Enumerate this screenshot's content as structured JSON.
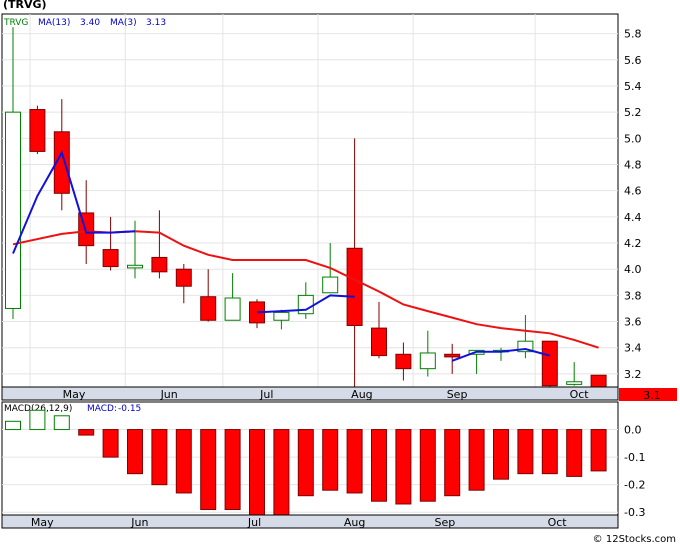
{
  "ticker_label": "(TRVG)",
  "footer": "© 12Stocks.com",
  "chart_data": [
    {
      "type": "candlestick",
      "title": "(TRVG)",
      "legend": {
        "symbol": "TRVG",
        "ma13_label": "MA(13)",
        "ma13_value": "3.40",
        "ma3_label": "MA(3)",
        "ma3_value": "3.13"
      },
      "last_price_label": "3.1",
      "ylim": [
        3.1,
        5.95
      ],
      "yticks": [
        "5.8",
        "5.6",
        "5.4",
        "5.2",
        "5.0",
        "4.8",
        "4.6",
        "4.4",
        "4.2",
        "4.0",
        "3.8",
        "3.6",
        "3.4",
        "3.2"
      ],
      "x_labels": [
        {
          "label": "May",
          "pos": 2.5
        },
        {
          "label": "Jun",
          "pos": 6.4
        },
        {
          "label": "Jul",
          "pos": 10.4
        },
        {
          "label": "Aug",
          "pos": 14.3
        },
        {
          "label": "Sep",
          "pos": 18.2
        },
        {
          "label": "Oct",
          "pos": 23.2
        }
      ],
      "candles": [
        {
          "o": 3.7,
          "c": 5.2,
          "h": 5.85,
          "l": 3.62
        },
        {
          "o": 5.22,
          "c": 4.9,
          "h": 5.25,
          "l": 4.88
        },
        {
          "o": 5.05,
          "c": 4.58,
          "h": 5.3,
          "l": 4.45
        },
        {
          "o": 4.43,
          "c": 4.18,
          "h": 4.68,
          "l": 4.04
        },
        {
          "o": 4.15,
          "c": 4.02,
          "h": 4.4,
          "l": 3.99
        },
        {
          "o": 4.01,
          "c": 4.03,
          "h": 4.37,
          "l": 3.93
        },
        {
          "o": 4.09,
          "c": 3.98,
          "h": 4.45,
          "l": 3.93
        },
        {
          "o": 4.0,
          "c": 3.87,
          "h": 4.04,
          "l": 3.74
        },
        {
          "o": 3.79,
          "c": 3.61,
          "h": 4.0,
          "l": 3.6
        },
        {
          "o": 3.61,
          "c": 3.78,
          "h": 3.97,
          "l": 3.61
        },
        {
          "o": 3.75,
          "c": 3.59,
          "h": 3.77,
          "l": 3.55
        },
        {
          "o": 3.61,
          "c": 3.67,
          "h": 3.69,
          "l": 3.54
        },
        {
          "o": 3.66,
          "c": 3.8,
          "h": 3.9,
          "l": 3.62
        },
        {
          "o": 3.82,
          "c": 3.94,
          "h": 4.2,
          "l": 3.82
        },
        {
          "o": 4.16,
          "c": 3.57,
          "h": 5.0,
          "l": 3.1
        },
        {
          "o": 3.55,
          "c": 3.34,
          "h": 3.75,
          "l": 3.32
        },
        {
          "o": 3.35,
          "c": 3.24,
          "h": 3.44,
          "l": 3.15
        },
        {
          "o": 3.24,
          "c": 3.36,
          "h": 3.53,
          "l": 3.18
        },
        {
          "o": 3.35,
          "c": 3.33,
          "h": 3.43,
          "l": 3.2
        },
        {
          "o": 3.35,
          "c": 3.38,
          "h": 3.38,
          "l": 3.2
        },
        {
          "o": 3.37,
          "c": 3.38,
          "h": 3.4,
          "l": 3.3
        },
        {
          "o": 3.37,
          "c": 3.45,
          "h": 3.65,
          "l": 3.32
        },
        {
          "o": 3.45,
          "c": 3.11,
          "h": 3.45,
          "l": 3.1
        },
        {
          "o": 3.12,
          "c": 3.14,
          "h": 3.29,
          "l": 3.11
        },
        {
          "o": 3.19,
          "c": 3.1,
          "h": 3.19,
          "l": 3.1
        }
      ],
      "ma13": [
        {
          "i": 0,
          "v": 4.19
        },
        {
          "i": 2,
          "v": 4.27
        },
        {
          "i": 3,
          "v": 4.29
        },
        {
          "i": 4,
          "v": 4.28
        },
        {
          "i": 5,
          "v": 4.29
        },
        {
          "i": 6,
          "v": 4.28
        },
        {
          "i": 7,
          "v": 4.18
        },
        {
          "i": 8,
          "v": 4.11
        },
        {
          "i": 9,
          "v": 4.07
        },
        {
          "i": 10,
          "v": 4.07
        },
        {
          "i": 11,
          "v": 4.07
        },
        {
          "i": 12,
          "v": 4.07
        },
        {
          "i": 13,
          "v": 4.01
        },
        {
          "i": 14,
          "v": 3.92
        },
        {
          "i": 15,
          "v": 3.83
        },
        {
          "i": 16,
          "v": 3.73
        },
        {
          "i": 17,
          "v": 3.68
        },
        {
          "i": 18,
          "v": 3.63
        },
        {
          "i": 19,
          "v": 3.58
        },
        {
          "i": 20,
          "v": 3.55
        },
        {
          "i": 21,
          "v": 3.53
        },
        {
          "i": 22,
          "v": 3.51
        },
        {
          "i": 23,
          "v": 3.46
        },
        {
          "i": 24,
          "v": 3.4
        }
      ],
      "ma3": [
        {
          "i": 0,
          "v": 4.12
        },
        {
          "i": 1,
          "v": 4.56
        },
        {
          "i": 2,
          "v": 4.89
        },
        {
          "i": 3,
          "v": 4.28
        },
        {
          "i": 4,
          "v": 4.28
        },
        {
          "i": 5,
          "v": 4.29
        },
        {
          "i": 10,
          "v": 3.67
        },
        {
          "i": 11,
          "v": 3.68
        },
        {
          "i": 12,
          "v": 3.69
        },
        {
          "i": 13,
          "v": 3.8
        },
        {
          "i": 14,
          "v": 3.79
        },
        {
          "i": 18,
          "v": 3.3
        },
        {
          "i": 19,
          "v": 3.37
        },
        {
          "i": 20,
          "v": 3.37
        },
        {
          "i": 21,
          "v": 3.39
        },
        {
          "i": 22,
          "v": 3.34
        }
      ]
    },
    {
      "type": "bar",
      "title": "MACD(26,12,9)",
      "legend": {
        "label": "MACD(26,12,9)",
        "macd_label": "MACD:",
        "macd_value": "-0.15"
      },
      "ylim": [
        -0.31,
        0.1
      ],
      "yticks": [
        "0.0",
        "-0.1",
        "-0.2",
        "-0.3"
      ],
      "x_labels": [
        {
          "label": "May",
          "pos": 1.2
        },
        {
          "label": "Jun",
          "pos": 5.2
        },
        {
          "label": "Jul",
          "pos": 9.9
        },
        {
          "label": "Aug",
          "pos": 14.0
        },
        {
          "label": "Sep",
          "pos": 17.7
        },
        {
          "label": "Oct",
          "pos": 22.3
        }
      ],
      "values": [
        0.03,
        0.07,
        0.05,
        -0.02,
        -0.1,
        -0.16,
        -0.2,
        -0.23,
        -0.29,
        -0.29,
        -0.31,
        -0.31,
        -0.24,
        -0.22,
        -0.23,
        -0.26,
        -0.27,
        -0.26,
        -0.24,
        -0.22,
        -0.18,
        -0.16,
        -0.16,
        -0.17,
        -0.15
      ]
    }
  ]
}
